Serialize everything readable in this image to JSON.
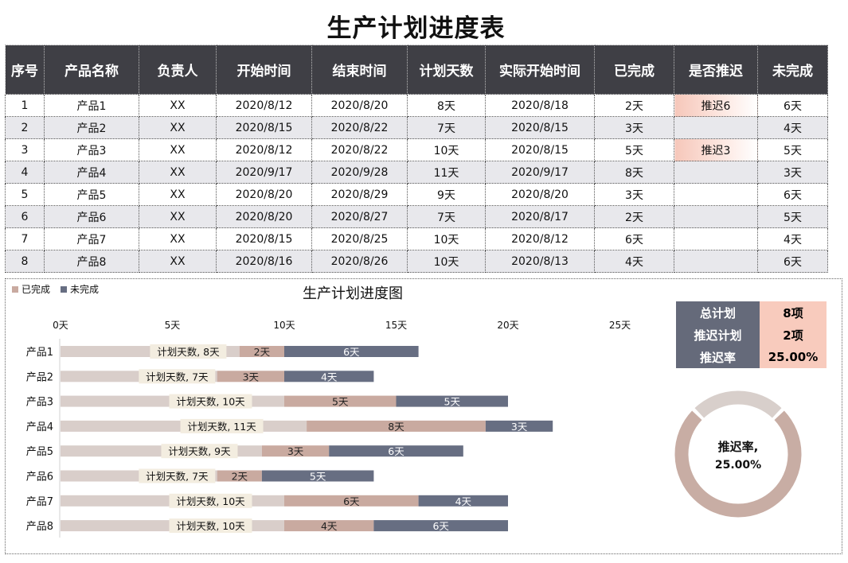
{
  "title": "生产计划进度表",
  "table": {
    "headers": [
      "序号",
      "产品名称",
      "负责人",
      "开始时间",
      "结束时间",
      "计划天数",
      "实际开始时间",
      "已完成",
      "是否推迟",
      "未完成"
    ],
    "rows": [
      [
        "1",
        "产品1",
        "XX",
        "2020/8/12",
        "2020/8/20",
        "8天",
        "2020/8/18",
        "2天",
        "推迟6",
        "6天"
      ],
      [
        "2",
        "产品2",
        "XX",
        "2020/8/15",
        "2020/8/22",
        "7天",
        "2020/8/15",
        "3天",
        "",
        "4天"
      ],
      [
        "3",
        "产品3",
        "XX",
        "2020/8/12",
        "2020/8/22",
        "10天",
        "2020/8/15",
        "5天",
        "推迟3",
        "5天"
      ],
      [
        "4",
        "产品4",
        "XX",
        "2020/9/17",
        "2020/9/28",
        "11天",
        "2020/9/17",
        "8天",
        "",
        "3天"
      ],
      [
        "5",
        "产品5",
        "XX",
        "2020/8/20",
        "2020/8/29",
        "9天",
        "2020/8/20",
        "3天",
        "",
        "6天"
      ],
      [
        "6",
        "产品6",
        "XX",
        "2020/8/20",
        "2020/8/27",
        "7天",
        "2020/8/17",
        "2天",
        "",
        "5天"
      ],
      [
        "7",
        "产品7",
        "XX",
        "2020/8/15",
        "2020/8/25",
        "10天",
        "2020/8/12",
        "6天",
        "",
        "4天"
      ],
      [
        "8",
        "产品8",
        "XX",
        "2020/8/16",
        "2020/8/26",
        "10天",
        "2020/8/13",
        "4天",
        "",
        "6天"
      ]
    ]
  },
  "stats": [
    {
      "label": "总计划",
      "value": "8项"
    },
    {
      "label": "推迟计划",
      "value": "2项"
    },
    {
      "label": "推迟率",
      "value": "25.00%"
    }
  ],
  "colors": {
    "plan": "#d9ceca",
    "done": "#c9aaa0",
    "todo": "#676e82",
    "label_bg": "#f3ede0",
    "header": "#3f3f45",
    "stat_key": "#656a7a",
    "stat_val": "#f8cbbd",
    "donut_main": "#c8ada4",
    "donut_rest": "#d8cfcb"
  },
  "chart_data": [
    {
      "type": "bar",
      "orientation": "horizontal",
      "stacked": true,
      "title": "生产计划进度图",
      "categories": [
        "产品1",
        "产品2",
        "产品3",
        "产品4",
        "产品5",
        "产品6",
        "产品7",
        "产品8"
      ],
      "plan_label_prefix": "计划天数,",
      "unit": "天",
      "series": [
        {
          "name": "计划天数",
          "values": [
            8,
            7,
            10,
            11,
            9,
            7,
            10,
            10
          ]
        },
        {
          "name": "已完成",
          "values": [
            2,
            3,
            5,
            8,
            3,
            2,
            6,
            4
          ]
        },
        {
          "name": "未完成",
          "values": [
            6,
            4,
            5,
            3,
            6,
            5,
            4,
            6
          ]
        }
      ],
      "legend_entries": [
        "已完成",
        "未完成"
      ],
      "x_ticks": [
        "0天",
        "5天",
        "10天",
        "15天",
        "20天",
        "25天"
      ],
      "xlim": [
        0,
        25
      ],
      "legend": "top-left",
      "grid": false
    },
    {
      "type": "pie",
      "donut": true,
      "label": "推迟率,",
      "label_value": "25.00%",
      "values": [
        75,
        25
      ]
    }
  ]
}
